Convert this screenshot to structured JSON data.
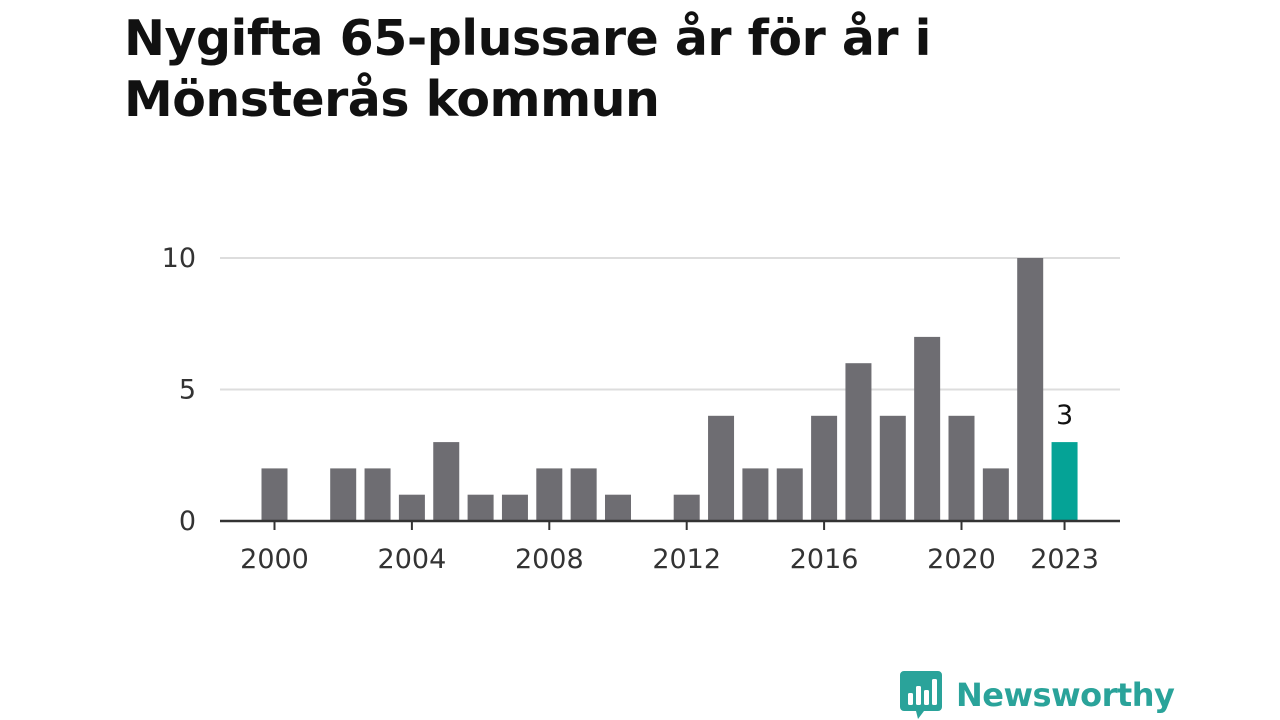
{
  "title": "Nygifta 65-plussare år för år i Mönsterås kommun",
  "brand": {
    "name": "Newsworthy",
    "icon": "newsworthy-logo-icon",
    "color": "#2aa39a"
  },
  "chart_data": {
    "type": "bar",
    "title": "Nygifta 65-plussare år för år i Mönsterås kommun",
    "xlabel": "",
    "ylabel": "",
    "categories": [
      2000,
      2001,
      2002,
      2003,
      2004,
      2005,
      2006,
      2007,
      2008,
      2009,
      2010,
      2011,
      2012,
      2013,
      2014,
      2015,
      2016,
      2017,
      2018,
      2019,
      2020,
      2021,
      2022,
      2023
    ],
    "values": [
      2,
      0,
      2,
      2,
      1,
      3,
      1,
      1,
      2,
      2,
      1,
      0,
      1,
      4,
      2,
      2,
      4,
      6,
      4,
      7,
      4,
      2,
      10,
      3
    ],
    "ylim": [
      0,
      10
    ],
    "y_ticks": [
      0,
      5,
      10
    ],
    "x_tick_labels": [
      "2000",
      "2004",
      "2008",
      "2012",
      "2016",
      "2020",
      "2023"
    ],
    "highlight": {
      "category": 2023,
      "label": "3"
    },
    "grid": true,
    "colors": {
      "bar": "#6e6d72",
      "highlight": "#05a396",
      "grid": "#dddddd",
      "axis": "#333333",
      "text": "#333333"
    }
  }
}
